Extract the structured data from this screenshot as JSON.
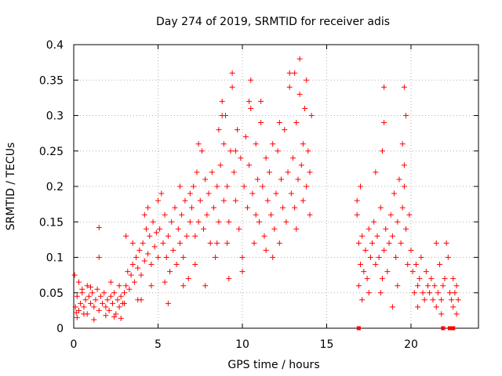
{
  "chart_data": {
    "type": "scatter",
    "title": "Day 274 of 2019, SRMTID for receiver adis",
    "xlabel": "GPS time / hours",
    "ylabel": "SRMTID / TECUs",
    "xlim": [
      0,
      24
    ],
    "ylim": [
      0,
      0.4
    ],
    "xticks": [
      0,
      5,
      10,
      15,
      20
    ],
    "yticks": [
      0,
      0.05,
      0.1,
      0.15,
      0.2,
      0.25,
      0.3,
      0.35,
      0.4
    ],
    "xtick_labels": [
      "0",
      "5",
      "10",
      "15",
      "20"
    ],
    "ytick_labels": [
      "0",
      "0.05",
      "0.1",
      "0.15",
      "0.2",
      "0.25",
      "0.3",
      "0.35",
      "0.4"
    ],
    "grid": true,
    "marker": "+",
    "color": "#ff0000",
    "series": [
      {
        "points": [
          [
            0.1,
            0.03
          ],
          [
            0.2,
            0.045
          ],
          [
            0.3,
            0.025
          ],
          [
            0.4,
            0.035
          ],
          [
            0.5,
            0.05
          ],
          [
            0.6,
            0.03
          ],
          [
            0.7,
            0.04
          ],
          [
            0.8,
            0.02
          ],
          [
            0.9,
            0.045
          ],
          [
            1.0,
            0.035
          ],
          [
            1.1,
            0.05
          ],
          [
            1.2,
            0.03
          ],
          [
            1.3,
            0.04
          ],
          [
            1.4,
            0.055
          ],
          [
            1.5,
            0.025
          ],
          [
            1.6,
            0.045
          ],
          [
            1.7,
            0.035
          ],
          [
            1.8,
            0.05
          ],
          [
            1.9,
            0.03
          ],
          [
            2.0,
            0.04
          ],
          [
            2.1,
            0.025
          ],
          [
            2.2,
            0.045
          ],
          [
            2.3,
            0.035
          ],
          [
            2.4,
            0.05
          ],
          [
            2.5,
            0.02
          ],
          [
            2.6,
            0.04
          ],
          [
            2.7,
            0.03
          ],
          [
            2.8,
            0.045
          ],
          [
            2.9,
            0.035
          ],
          [
            3.0,
            0.05
          ],
          [
            0.05,
            0.075
          ],
          [
            1.5,
            0.142
          ],
          [
            1.5,
            0.1
          ],
          [
            0.3,
            0.065
          ],
          [
            0.5,
            0.055
          ],
          [
            0.8,
            0.06
          ],
          [
            1.0,
            0.058
          ],
          [
            2.2,
            0.065
          ],
          [
            2.7,
            0.06
          ],
          [
            0.15,
            0.022
          ],
          [
            3.1,
            0.06
          ],
          [
            3.2,
            0.08
          ],
          [
            3.3,
            0.055
          ],
          [
            3.4,
            0.075
          ],
          [
            3.5,
            0.09
          ],
          [
            3.6,
            0.065
          ],
          [
            3.7,
            0.1
          ],
          [
            3.8,
            0.085
          ],
          [
            3.9,
            0.11
          ],
          [
            4.0,
            0.075
          ],
          [
            4.1,
            0.12
          ],
          [
            4.2,
            0.095
          ],
          [
            4.3,
            0.14
          ],
          [
            4.4,
            0.105
          ],
          [
            4.5,
            0.13
          ],
          [
            4.6,
            0.09
          ],
          [
            4.7,
            0.15
          ],
          [
            4.8,
            0.115
          ],
          [
            4.9,
            0.135
          ],
          [
            5.0,
            0.1
          ],
          [
            3.1,
            0.13
          ],
          [
            3.0,
            0.035
          ],
          [
            4.2,
            0.16
          ],
          [
            4.0,
            0.04
          ],
          [
            3.5,
            0.12
          ],
          [
            4.6,
            0.06
          ],
          [
            3.8,
            0.04
          ],
          [
            4.4,
            0.17
          ],
          [
            5.0,
            0.18
          ],
          [
            5.1,
            0.14
          ],
          [
            5.2,
            0.19
          ],
          [
            5.3,
            0.12
          ],
          [
            5.4,
            0.16
          ],
          [
            5.5,
            0.1
          ],
          [
            5.6,
            0.13
          ],
          [
            5.7,
            0.08
          ],
          [
            5.8,
            0.15
          ],
          [
            5.9,
            0.11
          ],
          [
            6.0,
            0.17
          ],
          [
            6.1,
            0.09
          ],
          [
            6.2,
            0.14
          ],
          [
            6.3,
            0.12
          ],
          [
            6.4,
            0.16
          ],
          [
            6.5,
            0.1
          ],
          [
            6.6,
            0.18
          ],
          [
            6.7,
            0.13
          ],
          [
            6.8,
            0.07
          ],
          [
            6.9,
            0.15
          ],
          [
            5.6,
            0.035
          ],
          [
            6.5,
            0.06
          ],
          [
            6.3,
            0.2
          ],
          [
            5.4,
            0.065
          ],
          [
            6.9,
            0.19
          ],
          [
            7.0,
            0.17
          ],
          [
            7.1,
            0.2
          ],
          [
            7.2,
            0.13
          ],
          [
            7.3,
            0.22
          ],
          [
            7.4,
            0.15
          ],
          [
            7.5,
            0.18
          ],
          [
            7.6,
            0.25
          ],
          [
            7.7,
            0.14
          ],
          [
            7.8,
            0.21
          ],
          [
            7.9,
            0.16
          ],
          [
            8.0,
            0.19
          ],
          [
            8.1,
            0.12
          ],
          [
            8.2,
            0.22
          ],
          [
            8.3,
            0.17
          ],
          [
            8.4,
            0.1
          ],
          [
            8.5,
            0.2
          ],
          [
            8.6,
            0.15
          ],
          [
            8.7,
            0.23
          ],
          [
            8.8,
            0.3
          ],
          [
            8.9,
            0.18
          ],
          [
            7.4,
            0.26
          ],
          [
            7.2,
            0.09
          ],
          [
            8.5,
            0.12
          ],
          [
            8.9,
            0.26
          ],
          [
            7.8,
            0.06
          ],
          [
            8.8,
            0.32
          ],
          [
            8.6,
            0.28
          ],
          [
            9.0,
            0.3
          ],
          [
            9.1,
            0.2
          ],
          [
            9.2,
            0.15
          ],
          [
            9.3,
            0.25
          ],
          [
            9.4,
            0.36
          ],
          [
            9.5,
            0.22
          ],
          [
            9.6,
            0.18
          ],
          [
            9.7,
            0.28
          ],
          [
            9.8,
            0.14
          ],
          [
            9.9,
            0.24
          ],
          [
            10.0,
            0.1
          ],
          [
            10.1,
            0.2
          ],
          [
            10.2,
            0.27
          ],
          [
            10.3,
            0.17
          ],
          [
            10.4,
            0.23
          ],
          [
            10.5,
            0.31
          ],
          [
            10.6,
            0.19
          ],
          [
            10.7,
            0.12
          ],
          [
            10.8,
            0.26
          ],
          [
            10.9,
            0.21
          ],
          [
            9.4,
            0.34
          ],
          [
            10.5,
            0.35
          ],
          [
            9.1,
            0.12
          ],
          [
            10.0,
            0.08
          ],
          [
            9.6,
            0.25
          ],
          [
            10.8,
            0.16
          ],
          [
            9.2,
            0.07
          ],
          [
            10.4,
            0.32
          ],
          [
            11.0,
            0.15
          ],
          [
            11.1,
            0.29
          ],
          [
            11.2,
            0.2
          ],
          [
            11.3,
            0.13
          ],
          [
            11.4,
            0.24
          ],
          [
            11.5,
            0.18
          ],
          [
            11.6,
            0.22
          ],
          [
            11.7,
            0.16
          ],
          [
            11.8,
            0.26
          ],
          [
            11.9,
            0.14
          ],
          [
            12.0,
            0.19
          ],
          [
            12.1,
            0.25
          ],
          [
            12.2,
            0.12
          ],
          [
            12.3,
            0.21
          ],
          [
            12.4,
            0.17
          ],
          [
            12.5,
            0.28
          ],
          [
            12.6,
            0.15
          ],
          [
            12.7,
            0.22
          ],
          [
            12.8,
            0.34
          ],
          [
            12.9,
            0.19
          ],
          [
            11.1,
            0.32
          ],
          [
            12.8,
            0.36
          ],
          [
            11.8,
            0.1
          ],
          [
            12.2,
            0.29
          ],
          [
            11.4,
            0.11
          ],
          [
            13.0,
            0.24
          ],
          [
            13.1,
            0.17
          ],
          [
            13.2,
            0.29
          ],
          [
            13.3,
            0.21
          ],
          [
            13.4,
            0.38
          ],
          [
            13.5,
            0.23
          ],
          [
            13.6,
            0.18
          ],
          [
            13.7,
            0.31
          ],
          [
            13.8,
            0.2
          ],
          [
            13.9,
            0.25
          ],
          [
            14.0,
            0.16
          ],
          [
            14.1,
            0.3
          ],
          [
            13.4,
            0.33
          ],
          [
            13.8,
            0.35
          ],
          [
            13.2,
            0.14
          ],
          [
            14.0,
            0.22
          ],
          [
            13.6,
            0.26
          ],
          [
            13.1,
            0.36
          ],
          [
            16.8,
            0.16
          ],
          [
            16.9,
            0.12
          ],
          [
            17.0,
            0.09
          ],
          [
            17.1,
            0.13
          ],
          [
            17.2,
            0.08
          ],
          [
            17.3,
            0.11
          ],
          [
            17.4,
            0.07
          ],
          [
            17.5,
            0.14
          ],
          [
            17.6,
            0.1
          ],
          [
            17.7,
            0.12
          ],
          [
            17.8,
            0.15
          ],
          [
            17.9,
            0.09
          ],
          [
            18.0,
            0.13
          ],
          [
            18.1,
            0.1
          ],
          [
            18.2,
            0.17
          ],
          [
            18.3,
            0.07
          ],
          [
            18.4,
            0.11
          ],
          [
            18.5,
            0.14
          ],
          [
            18.6,
            0.08
          ],
          [
            18.7,
            0.12
          ],
          [
            16.8,
            0.18
          ],
          [
            17.0,
            0.2
          ],
          [
            17.5,
            0.05
          ],
          [
            17.9,
            0.22
          ],
          [
            18.2,
            0.05
          ],
          [
            18.4,
            0.34
          ],
          [
            18.4,
            0.29
          ],
          [
            18.3,
            0.25
          ],
          [
            17.1,
            0.04
          ],
          [
            16.9,
            0.06
          ],
          [
            18.8,
            0.16
          ],
          [
            18.9,
            0.13
          ],
          [
            19.0,
            0.19
          ],
          [
            19.1,
            0.1
          ],
          [
            19.2,
            0.15
          ],
          [
            19.3,
            0.21
          ],
          [
            19.4,
            0.12
          ],
          [
            19.5,
            0.17
          ],
          [
            19.6,
            0.2
          ],
          [
            19.7,
            0.14
          ],
          [
            19.8,
            0.09
          ],
          [
            19.9,
            0.16
          ],
          [
            20.0,
            0.11
          ],
          [
            19.6,
            0.34
          ],
          [
            19.7,
            0.3
          ],
          [
            19.5,
            0.26
          ],
          [
            19.2,
            0.06
          ],
          [
            19.6,
            0.23
          ],
          [
            18.9,
            0.03
          ],
          [
            20.1,
            0.08
          ],
          [
            20.2,
            0.05
          ],
          [
            20.3,
            0.09
          ],
          [
            20.4,
            0.06
          ],
          [
            20.5,
            0.07
          ],
          [
            20.6,
            0.1
          ],
          [
            20.7,
            0.05
          ],
          [
            20.8,
            0.04
          ],
          [
            20.9,
            0.08
          ],
          [
            21.0,
            0.06
          ],
          [
            21.1,
            0.05
          ],
          [
            21.2,
            0.07
          ],
          [
            21.3,
            0.04
          ],
          [
            21.4,
            0.06
          ],
          [
            21.5,
            0.03
          ],
          [
            21.6,
            0.05
          ],
          [
            21.7,
            0.09
          ],
          [
            21.8,
            0.04
          ],
          [
            21.9,
            0.06
          ],
          [
            22.0,
            0.07
          ],
          [
            22.1,
            0.12
          ],
          [
            22.2,
            0.1
          ],
          [
            22.3,
            0.05
          ],
          [
            22.4,
            0.04
          ],
          [
            22.5,
            0.07
          ],
          [
            22.6,
            0.05
          ],
          [
            22.7,
            0.06
          ],
          [
            22.8,
            0.04
          ],
          [
            20.4,
            0.03
          ],
          [
            21.5,
            0.12
          ],
          [
            0.2,
            0.015
          ],
          [
            0.6,
            0.02
          ],
          [
            1.2,
            0.012
          ],
          [
            1.9,
            0.018
          ],
          [
            2.4,
            0.016
          ],
          [
            2.8,
            0.014
          ],
          [
            22.5,
            0.03
          ],
          [
            22.7,
            0.02
          ],
          [
            21.8,
            0.02
          ]
        ]
      }
    ],
    "zero_markers": [
      16.9,
      21.9,
      22.3,
      22.5
    ]
  }
}
